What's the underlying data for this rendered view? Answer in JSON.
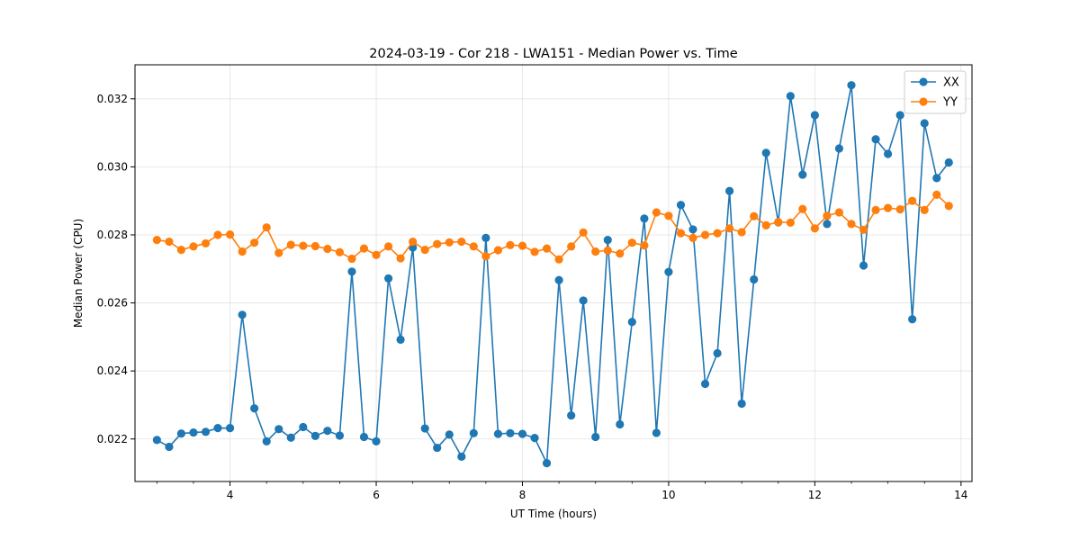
{
  "chart_data": {
    "type": "line",
    "title": "2024-03-19 - Cor 218 - LWA151 - Median Power vs. Time",
    "xlabel": "UT Time (hours)",
    "ylabel": "Median Power (CPU)",
    "xlim": [
      2.7,
      14.15
    ],
    "ylim": [
      0.02075,
      0.033
    ],
    "xticks": [
      4,
      6,
      8,
      10,
      12,
      14
    ],
    "xtick_labels": [
      "4",
      "6",
      "8",
      "10",
      "12",
      "14"
    ],
    "x_minor_step": 0.5,
    "yticks": [
      0.022,
      0.024,
      0.026,
      0.028,
      0.03,
      0.032
    ],
    "ytick_labels": [
      "0.022",
      "0.024",
      "0.026",
      "0.028",
      "0.030",
      "0.032"
    ],
    "grid": true,
    "legend_position": "top-right",
    "x": [
      3.0,
      3.167,
      3.333,
      3.5,
      3.667,
      3.833,
      4.0,
      4.167,
      4.333,
      4.5,
      4.667,
      4.833,
      5.0,
      5.167,
      5.333,
      5.5,
      5.667,
      5.833,
      6.0,
      6.167,
      6.333,
      6.5,
      6.667,
      6.833,
      7.0,
      7.167,
      7.333,
      7.5,
      7.667,
      7.833,
      8.0,
      8.167,
      8.333,
      8.5,
      8.667,
      8.833,
      9.0,
      9.167,
      9.333,
      9.5,
      9.667,
      9.833,
      10.0,
      10.167,
      10.333,
      10.5,
      10.667,
      10.833,
      11.0,
      11.167,
      11.333,
      11.5,
      11.667,
      11.833,
      12.0,
      12.167,
      12.333,
      12.5,
      12.667,
      12.833,
      13.0,
      13.167,
      13.333,
      13.5,
      13.667,
      13.833
    ],
    "series": [
      {
        "name": "XX",
        "color": "#1f77b4",
        "values": [
          0.02197,
          0.02177,
          0.02216,
          0.02219,
          0.02221,
          0.02232,
          0.02232,
          0.02565,
          0.0229,
          0.02193,
          0.02229,
          0.02204,
          0.02235,
          0.02209,
          0.02224,
          0.0221,
          0.02692,
          0.02206,
          0.02193,
          0.02672,
          0.02492,
          0.02763,
          0.02231,
          0.02174,
          0.02213,
          0.02148,
          0.02217,
          0.02791,
          0.02215,
          0.02217,
          0.02215,
          0.02203,
          0.02129,
          0.02667,
          0.02269,
          0.02607,
          0.02206,
          0.02785,
          0.02243,
          0.02544,
          0.02848,
          0.02218,
          0.02691,
          0.02888,
          0.02816,
          0.02362,
          0.02452,
          0.02929,
          0.02304,
          0.02669,
          0.03041,
          0.02837,
          0.03208,
          0.02977,
          0.03152,
          0.02832,
          0.03054,
          0.0324,
          0.0271,
          0.03081,
          0.03038,
          0.03152,
          0.02552,
          0.03128,
          0.02967,
          0.03013
        ]
      },
      {
        "name": "YY",
        "color": "#ff7f0e",
        "values": [
          0.02785,
          0.0278,
          0.02756,
          0.02766,
          0.02775,
          0.028,
          0.02801,
          0.02751,
          0.02777,
          0.02822,
          0.02747,
          0.02771,
          0.02768,
          0.02767,
          0.02759,
          0.02749,
          0.0273,
          0.0276,
          0.02741,
          0.02766,
          0.02731,
          0.0278,
          0.02756,
          0.02773,
          0.02778,
          0.0278,
          0.02766,
          0.02737,
          0.02755,
          0.0277,
          0.02768,
          0.0275,
          0.0276,
          0.02728,
          0.02766,
          0.02807,
          0.02751,
          0.02754,
          0.02745,
          0.02777,
          0.02769,
          0.02866,
          0.02856,
          0.02805,
          0.02791,
          0.028,
          0.02805,
          0.02819,
          0.02808,
          0.02855,
          0.02828,
          0.02838,
          0.02836,
          0.02876,
          0.02819,
          0.02856,
          0.02866,
          0.02832,
          0.02815,
          0.02873,
          0.02879,
          0.02875,
          0.029,
          0.02873,
          0.02918,
          0.02885
        ]
      }
    ]
  }
}
